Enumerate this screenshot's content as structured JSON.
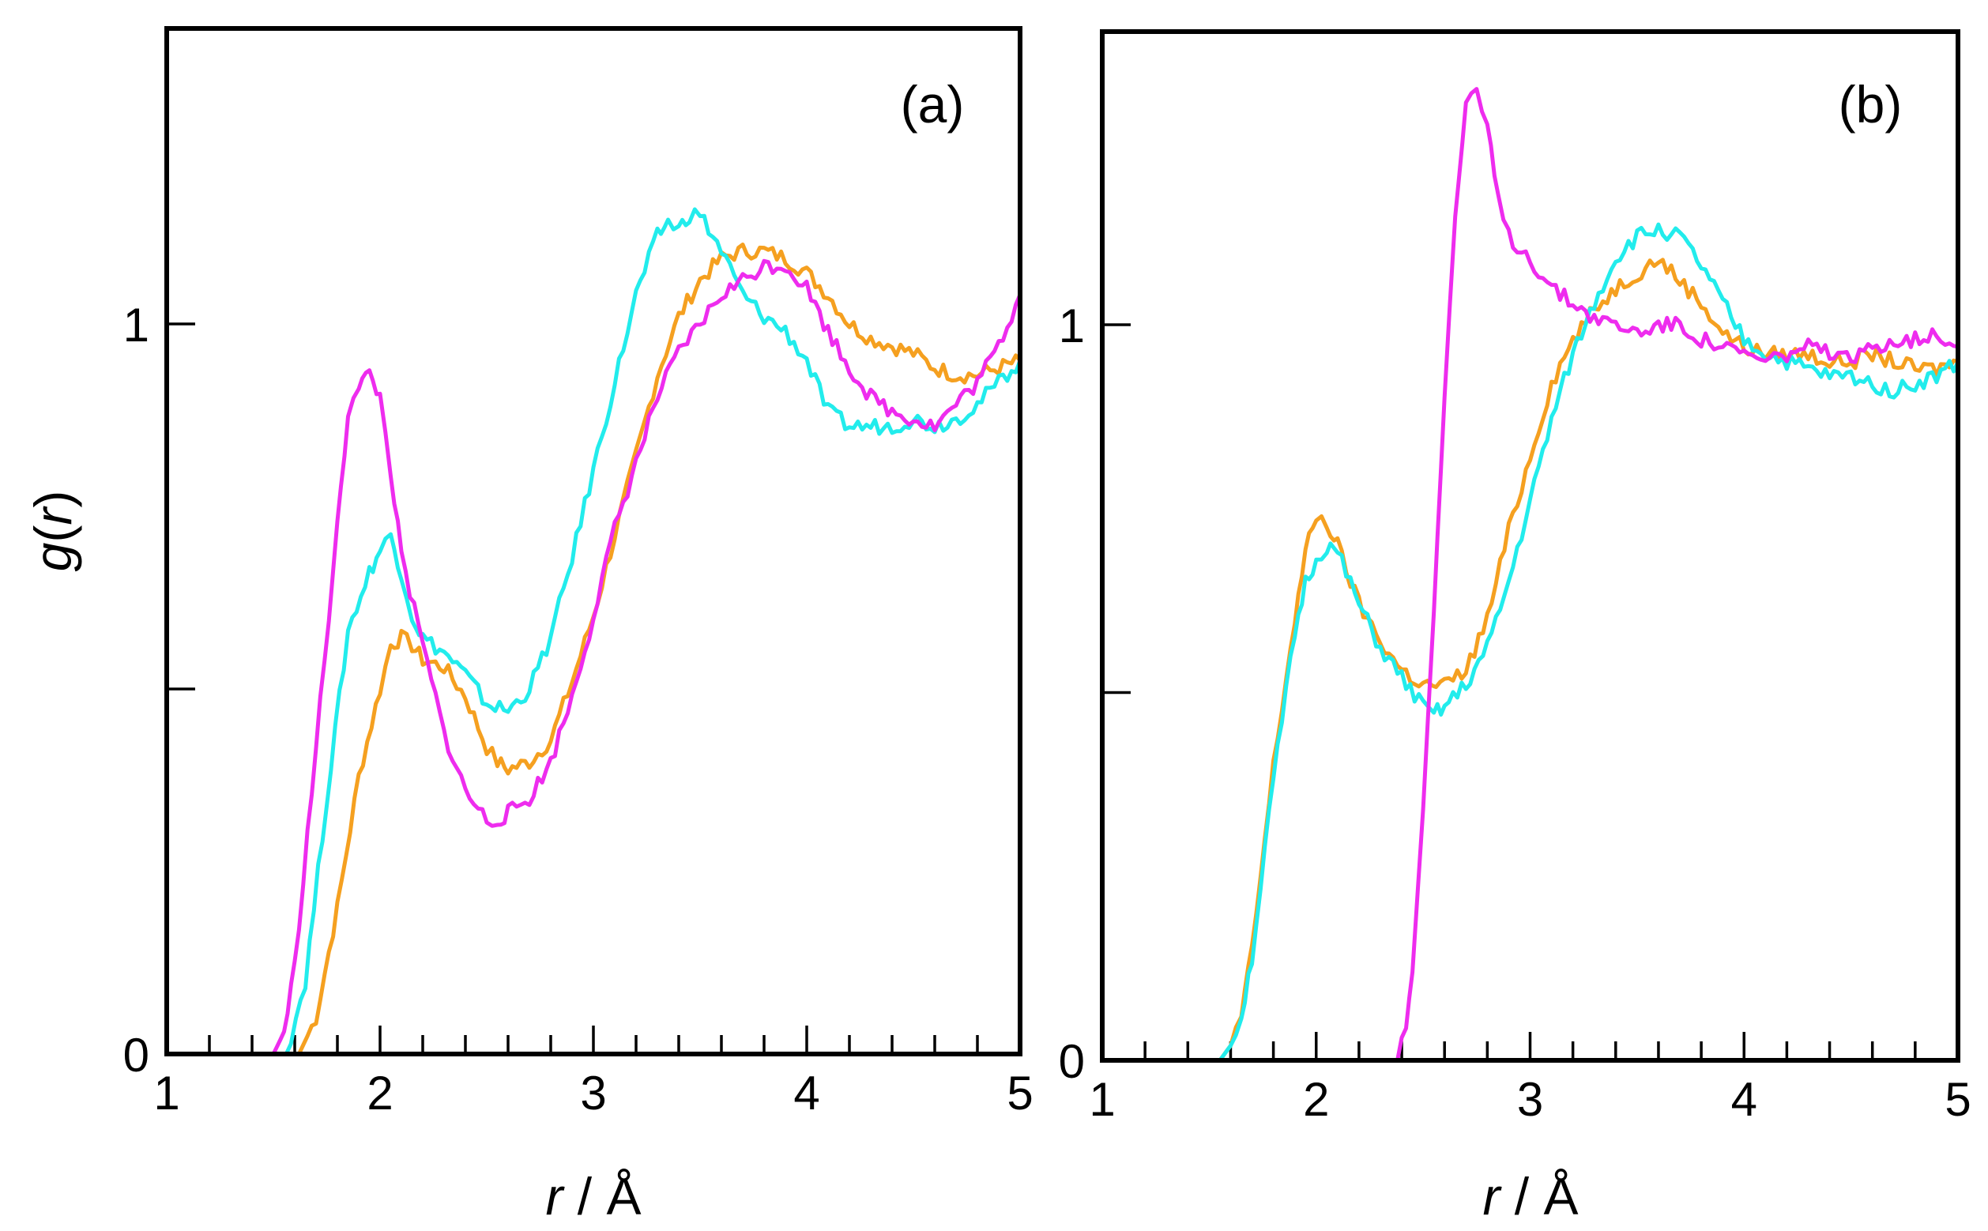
{
  "chart_data": [
    {
      "type": "line",
      "panel_label": "(a)",
      "xlabel_var": "r",
      "xlabel_unit": " / Å",
      "ylabel_var": "r",
      "ylabel_prefix": "g(",
      "ylabel_suffix": ")",
      "xlim": [
        1,
        5
      ],
      "ylim": [
        0,
        1.4
      ],
      "xticks": [
        1,
        2,
        3,
        4,
        5
      ],
      "xtick_labels": [
        "1",
        "2",
        "3",
        "4",
        "5"
      ],
      "yticks": [
        0,
        0.5,
        1
      ],
      "ytick_labels": [
        "0",
        "",
        "1"
      ],
      "series": [
        {
          "name": "orange",
          "color": "#f5a020",
          "x": [
            1.0,
            1.5,
            1.62,
            1.7,
            1.8,
            1.9,
            2.0,
            2.05,
            2.1,
            2.15,
            2.2,
            2.3,
            2.4,
            2.5,
            2.55,
            2.6,
            2.7,
            2.8,
            2.9,
            3.0,
            3.1,
            3.2,
            3.3,
            3.4,
            3.5,
            3.6,
            3.7,
            3.8,
            3.9,
            4.0,
            4.1,
            4.2,
            4.3,
            4.4,
            4.5,
            4.6,
            4.7,
            4.8,
            4.9,
            5.0
          ],
          "y": [
            0,
            0,
            0.0,
            0.05,
            0.2,
            0.38,
            0.5,
            0.56,
            0.57,
            0.56,
            0.54,
            0.53,
            0.49,
            0.42,
            0.4,
            0.39,
            0.4,
            0.43,
            0.51,
            0.6,
            0.71,
            0.82,
            0.93,
            1.01,
            1.06,
            1.09,
            1.1,
            1.1,
            1.09,
            1.07,
            1.04,
            1.0,
            0.98,
            0.97,
            0.96,
            0.94,
            0.93,
            0.93,
            0.94,
            0.95
          ]
        },
        {
          "name": "cyan",
          "color": "#22ecec",
          "x": [
            1.0,
            1.5,
            1.56,
            1.65,
            1.75,
            1.85,
            1.95,
            2.0,
            2.05,
            2.1,
            2.15,
            2.2,
            2.3,
            2.4,
            2.5,
            2.6,
            2.7,
            2.8,
            2.9,
            3.0,
            3.1,
            3.2,
            3.3,
            3.35,
            3.4,
            3.45,
            3.5,
            3.6,
            3.7,
            3.8,
            3.9,
            4.0,
            4.1,
            4.2,
            4.3,
            4.4,
            4.5,
            4.6,
            4.7,
            4.8,
            4.9,
            5.0
          ],
          "y": [
            0,
            0,
            0.0,
            0.1,
            0.35,
            0.58,
            0.66,
            0.69,
            0.71,
            0.66,
            0.6,
            0.57,
            0.55,
            0.52,
            0.48,
            0.47,
            0.5,
            0.57,
            0.68,
            0.8,
            0.92,
            1.04,
            1.12,
            1.14,
            1.13,
            1.15,
            1.15,
            1.1,
            1.04,
            1.01,
            0.99,
            0.95,
            0.88,
            0.86,
            0.86,
            0.86,
            0.87,
            0.86,
            0.87,
            0.89,
            0.92,
            0.95
          ]
        },
        {
          "name": "magenta",
          "color": "#ee2cee",
          "x": [
            1.0,
            1.45,
            1.5,
            1.55,
            1.6,
            1.7,
            1.8,
            1.85,
            1.9,
            1.95,
            2.0,
            2.05,
            2.1,
            2.2,
            2.3,
            2.4,
            2.5,
            2.55,
            2.6,
            2.7,
            2.8,
            2.9,
            3.0,
            3.1,
            3.2,
            3.3,
            3.4,
            3.5,
            3.6,
            3.7,
            3.8,
            3.9,
            4.0,
            4.1,
            4.2,
            4.3,
            4.4,
            4.5,
            4.6,
            4.7,
            4.8,
            4.9,
            5.0
          ],
          "y": [
            0,
            0,
            0.0,
            0.03,
            0.12,
            0.42,
            0.72,
            0.88,
            0.92,
            0.93,
            0.9,
            0.8,
            0.68,
            0.56,
            0.44,
            0.36,
            0.32,
            0.32,
            0.33,
            0.35,
            0.4,
            0.49,
            0.6,
            0.72,
            0.81,
            0.9,
            0.96,
            1.0,
            1.04,
            1.06,
            1.08,
            1.08,
            1.05,
            0.99,
            0.94,
            0.9,
            0.88,
            0.87,
            0.86,
            0.89,
            0.92,
            0.97,
            1.04
          ]
        }
      ]
    },
    {
      "type": "line",
      "panel_label": "(b)",
      "xlabel_var": "r",
      "xlabel_unit": " / Å",
      "xlim": [
        1,
        5
      ],
      "ylim": [
        0,
        1.4
      ],
      "xticks": [
        1,
        2,
        3,
        4,
        5
      ],
      "xtick_labels": [
        "1",
        "2",
        "3",
        "4",
        "5"
      ],
      "yticks": [
        0,
        0.5,
        1
      ],
      "ytick_labels": [
        "0",
        "",
        "1"
      ],
      "series": [
        {
          "name": "orange",
          "color": "#f5a020",
          "x": [
            1.0,
            1.55,
            1.6,
            1.65,
            1.7,
            1.8,
            1.9,
            1.95,
            2.0,
            2.05,
            2.1,
            2.2,
            2.3,
            2.4,
            2.5,
            2.6,
            2.7,
            2.8,
            2.9,
            3.0,
            3.1,
            3.2,
            3.3,
            3.4,
            3.5,
            3.6,
            3.7,
            3.8,
            3.9,
            4.0,
            4.1,
            4.2,
            4.3,
            4.4,
            4.5,
            4.6,
            4.7,
            4.8,
            4.9,
            5.0
          ],
          "y": [
            0,
            0,
            0.02,
            0.06,
            0.15,
            0.4,
            0.6,
            0.69,
            0.74,
            0.73,
            0.7,
            0.62,
            0.57,
            0.53,
            0.51,
            0.51,
            0.53,
            0.6,
            0.72,
            0.82,
            0.92,
            0.98,
            1.02,
            1.05,
            1.07,
            1.09,
            1.06,
            1.03,
            0.99,
            0.97,
            0.96,
            0.96,
            0.96,
            0.95,
            0.95,
            0.96,
            0.95,
            0.94,
            0.94,
            0.95
          ]
        },
        {
          "name": "cyan",
          "color": "#22ecec",
          "x": [
            1.0,
            1.55,
            1.6,
            1.65,
            1.7,
            1.8,
            1.9,
            1.95,
            2.0,
            2.05,
            2.1,
            2.2,
            2.3,
            2.4,
            2.5,
            2.55,
            2.6,
            2.7,
            2.8,
            2.9,
            3.0,
            3.1,
            3.2,
            3.3,
            3.4,
            3.5,
            3.6,
            3.7,
            3.8,
            3.9,
            4.0,
            4.1,
            4.2,
            4.3,
            4.4,
            4.5,
            4.6,
            4.7,
            4.8,
            4.9,
            5.0
          ],
          "y": [
            0,
            0,
            0.02,
            0.06,
            0.14,
            0.38,
            0.58,
            0.65,
            0.68,
            0.7,
            0.69,
            0.62,
            0.56,
            0.52,
            0.48,
            0.47,
            0.48,
            0.51,
            0.56,
            0.65,
            0.76,
            0.87,
            0.96,
            1.03,
            1.09,
            1.12,
            1.13,
            1.12,
            1.08,
            1.03,
            0.98,
            0.96,
            0.95,
            0.94,
            0.93,
            0.93,
            0.92,
            0.91,
            0.92,
            0.93,
            0.95
          ]
        },
        {
          "name": "magenta",
          "color": "#ee2cee",
          "x": [
            1.0,
            2.35,
            2.38,
            2.42,
            2.45,
            2.5,
            2.55,
            2.6,
            2.65,
            2.7,
            2.75,
            2.8,
            2.85,
            2.9,
            3.0,
            3.1,
            3.2,
            3.3,
            3.4,
            3.5,
            3.6,
            3.7,
            3.8,
            3.9,
            4.0,
            4.1,
            4.2,
            4.3,
            4.4,
            4.5,
            4.6,
            4.7,
            4.8,
            4.9,
            5.0
          ],
          "y": [
            0,
            0,
            0.0,
            0.05,
            0.12,
            0.35,
            0.62,
            0.9,
            1.15,
            1.3,
            1.31,
            1.27,
            1.17,
            1.12,
            1.09,
            1.05,
            1.03,
            1.01,
            1.0,
            0.99,
            1.0,
            1.0,
            0.98,
            0.97,
            0.96,
            0.95,
            0.96,
            0.97,
            0.96,
            0.95,
            0.97,
            0.98,
            0.98,
            0.99,
            0.97
          ]
        }
      ]
    }
  ]
}
